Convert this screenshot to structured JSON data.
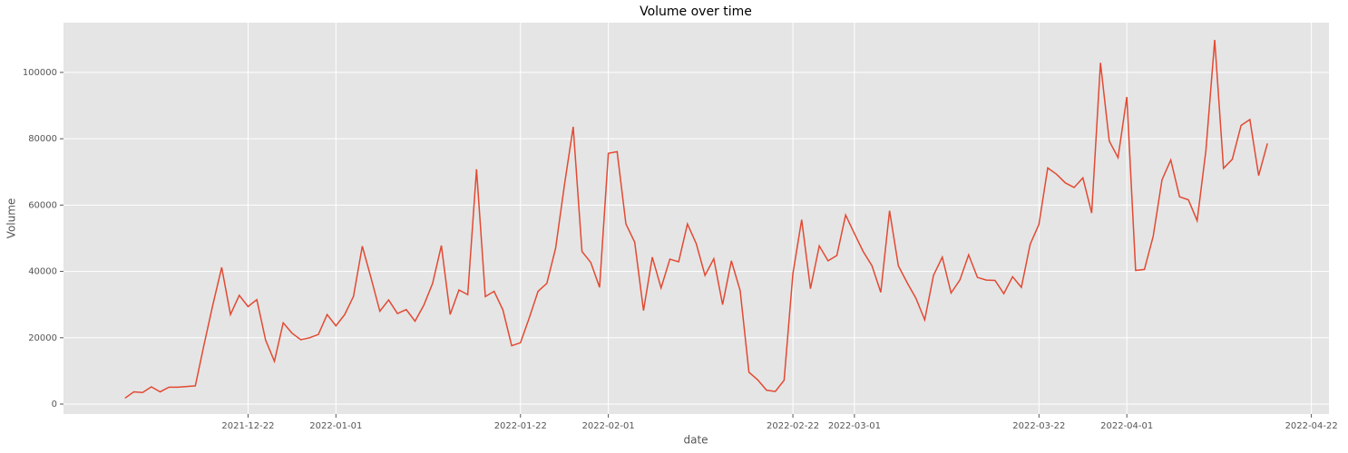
{
  "chart_data": {
    "type": "line",
    "title": "Volume over time",
    "xlabel": "date",
    "ylabel": "Volume",
    "x": [
      "2021-12-08",
      "2021-12-09",
      "2021-12-10",
      "2021-12-11",
      "2021-12-12",
      "2021-12-13",
      "2021-12-14",
      "2021-12-15",
      "2021-12-16",
      "2021-12-17",
      "2021-12-18",
      "2021-12-19",
      "2021-12-20",
      "2021-12-21",
      "2021-12-22",
      "2021-12-23",
      "2021-12-24",
      "2021-12-25",
      "2021-12-26",
      "2021-12-27",
      "2021-12-28",
      "2021-12-29",
      "2021-12-30",
      "2021-12-31",
      "2022-01-01",
      "2022-01-02",
      "2022-01-03",
      "2022-01-04",
      "2022-01-05",
      "2022-01-06",
      "2022-01-07",
      "2022-01-08",
      "2022-01-09",
      "2022-01-10",
      "2022-01-11",
      "2022-01-12",
      "2022-01-13",
      "2022-01-14",
      "2022-01-15",
      "2022-01-16",
      "2022-01-17",
      "2022-01-18",
      "2022-01-19",
      "2022-01-20",
      "2022-01-21",
      "2022-01-22",
      "2022-01-23",
      "2022-01-24",
      "2022-01-25",
      "2022-01-26",
      "2022-01-27",
      "2022-01-28",
      "2022-01-29",
      "2022-01-30",
      "2022-01-31",
      "2022-02-01",
      "2022-02-02",
      "2022-02-03",
      "2022-02-04",
      "2022-02-05",
      "2022-02-06",
      "2022-02-07",
      "2022-02-08",
      "2022-02-09",
      "2022-02-10",
      "2022-02-11",
      "2022-02-12",
      "2022-02-13",
      "2022-02-14",
      "2022-02-15",
      "2022-02-16",
      "2022-02-17",
      "2022-02-18",
      "2022-02-19",
      "2022-02-20",
      "2022-02-21",
      "2022-02-22",
      "2022-02-23",
      "2022-02-24",
      "2022-02-25",
      "2022-02-26",
      "2022-02-27",
      "2022-02-28",
      "2022-03-01",
      "2022-03-02",
      "2022-03-03",
      "2022-03-04",
      "2022-03-05",
      "2022-03-06",
      "2022-03-07",
      "2022-03-08",
      "2022-03-09",
      "2022-03-10",
      "2022-03-11",
      "2022-03-12",
      "2022-03-13",
      "2022-03-14",
      "2022-03-15",
      "2022-03-16",
      "2022-03-17",
      "2022-03-18",
      "2022-03-19",
      "2022-03-20",
      "2022-03-21",
      "2022-03-22",
      "2022-03-23",
      "2022-03-24",
      "2022-03-25",
      "2022-03-26",
      "2022-03-27",
      "2022-03-28",
      "2022-03-29",
      "2022-03-30",
      "2022-03-31",
      "2022-04-01",
      "2022-04-02",
      "2022-04-03",
      "2022-04-04",
      "2022-04-05",
      "2022-04-06",
      "2022-04-07",
      "2022-04-08",
      "2022-04-09",
      "2022-04-10",
      "2022-04-11",
      "2022-04-12",
      "2022-04-13",
      "2022-04-14",
      "2022-04-15",
      "2022-04-16",
      "2022-04-17"
    ],
    "series": [
      {
        "name": "Volume",
        "color": "#E24A33",
        "values": [
          1800,
          3700,
          3500,
          5200,
          3700,
          5100,
          5100,
          5300,
          5500,
          18000,
          30000,
          41200,
          27000,
          32800,
          29400,
          31500,
          19300,
          12900,
          24500,
          21400,
          19400,
          20000,
          21000,
          27000,
          23600,
          27000,
          32500,
          47600,
          38000,
          28000,
          31400,
          27300,
          28500,
          25000,
          29800,
          36400,
          47800,
          27000,
          34400,
          33000,
          70800,
          32400,
          34000,
          28400,
          17600,
          18500,
          26000,
          34000,
          36400,
          47000,
          66000,
          83600,
          46000,
          42700,
          35200,
          75600,
          76100,
          54300,
          48800,
          28200,
          44300,
          35000,
          43700,
          42900,
          54300,
          48400,
          38800,
          43800,
          30000,
          43200,
          34200,
          9600,
          7300,
          4200,
          3800,
          7200,
          39300,
          55600,
          34800,
          47700,
          43200,
          44800,
          57000,
          51400,
          46000,
          41700,
          33700,
          58300,
          41700,
          36600,
          31900,
          25400,
          38800,
          44300,
          33500,
          37400,
          45000,
          38200,
          37400,
          37300,
          33300,
          38400,
          35200,
          48200,
          54200,
          71200,
          69300,
          66700,
          65300,
          68200,
          57600,
          102900,
          79300,
          74300,
          92600,
          40300,
          40600,
          50600,
          67600,
          73600,
          62500,
          61600,
          55300,
          76500,
          109800,
          71100,
          73800,
          84000,
          85800,
          68900,
          78600
        ]
      }
    ],
    "xlim": [
      "2021-12-01",
      "2022-04-24"
    ],
    "xticks": [
      "2021-12-22",
      "2022-01-01",
      "2022-01-22",
      "2022-02-01",
      "2022-02-22",
      "2022-03-01",
      "2022-03-22",
      "2022-04-01",
      "2022-04-22"
    ],
    "ylim": [
      -3000,
      115000
    ],
    "yticks": [
      0,
      20000,
      40000,
      60000,
      80000,
      100000
    ],
    "grid": true
  }
}
